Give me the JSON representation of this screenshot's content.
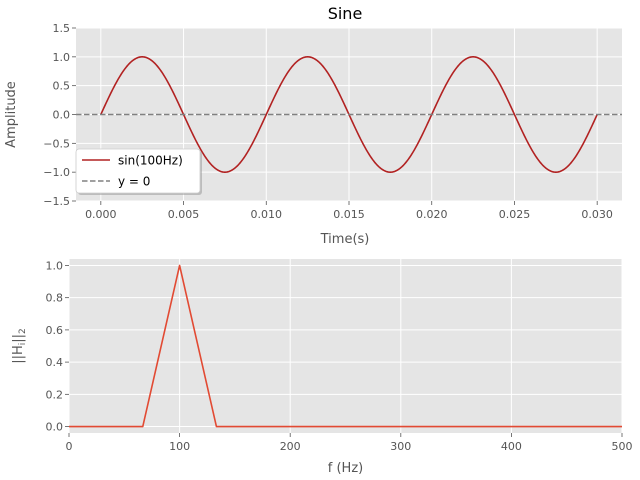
{
  "chart_data": [
    {
      "type": "line",
      "title": "Sine",
      "xlabel": "Time(s)",
      "ylabel": "Amplitude",
      "xlim": [
        -0.0015,
        0.0315
      ],
      "ylim": [
        -1.5,
        1.5
      ],
      "x_ticks": [
        0.0,
        0.005,
        0.01,
        0.015,
        0.02,
        0.025,
        0.03
      ],
      "x_tick_labels": [
        "0.000",
        "0.005",
        "0.010",
        "0.015",
        "0.020",
        "0.025",
        "0.030"
      ],
      "y_ticks": [
        1.5,
        1.0,
        0.5,
        0.0,
        -0.5,
        -1.0,
        -1.5
      ],
      "y_tick_labels": [
        "1.5",
        "1.0",
        "0.5",
        "0.0",
        "−0.5",
        "−1.0",
        "−1.5"
      ],
      "grid": true,
      "legend_position": "lower-left",
      "series": [
        {
          "name": "sin(100Hz)",
          "function": "sin",
          "frequency_hz": 100,
          "amplitude": 1,
          "x_range": [
            0,
            0.03
          ],
          "color": "#b22222",
          "style": "solid"
        },
        {
          "name": "y = 0",
          "x": [
            -0.0015,
            0.0315
          ],
          "y": [
            0,
            0
          ],
          "color": "#808080",
          "style": "dashed"
        }
      ]
    },
    {
      "type": "line",
      "xlabel": "f (Hz)",
      "ylabel": "||H",
      "ylabel_sub_i": "i",
      "ylabel_tail": "||",
      "ylabel_sub_2": "2",
      "xlim": [
        0,
        500
      ],
      "ylim": [
        -0.04,
        1.04
      ],
      "x_ticks": [
        0,
        100,
        200,
        300,
        400,
        500
      ],
      "x_tick_labels": [
        "0",
        "100",
        "200",
        "300",
        "400",
        "500"
      ],
      "y_ticks": [
        0.0,
        0.2,
        0.4,
        0.6,
        0.8,
        1.0
      ],
      "y_tick_labels": [
        "0.0",
        "0.2",
        "0.4",
        "0.6",
        "0.8",
        "1.0"
      ],
      "grid": true,
      "series": [
        {
          "x": [
            0,
            66.7,
            100,
            133.3,
            500
          ],
          "y": [
            0,
            0,
            1,
            0,
            0
          ],
          "color": "#e24a33",
          "style": "solid"
        }
      ]
    }
  ],
  "colors": {
    "axes_bg": "#e5e5e5",
    "grid": "#ffffff",
    "text": "#555555",
    "title": "#000000"
  }
}
